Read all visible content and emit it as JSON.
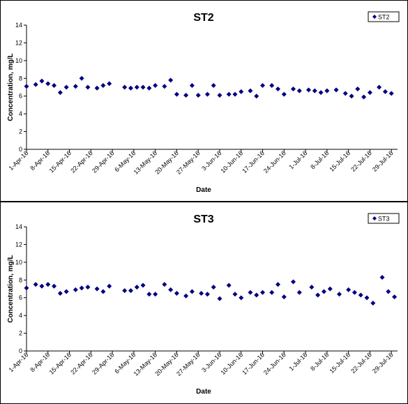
{
  "chart_data": [
    {
      "type": "scatter",
      "title": "ST2",
      "xlabel": "Date",
      "ylabel": "Concentration, mg/L",
      "ylim": [
        0,
        14
      ],
      "yticks": [
        0,
        2,
        4,
        6,
        8,
        10,
        12,
        14
      ],
      "xlim": [
        "2016-04-01",
        "2016-07-31"
      ],
      "xtick_labels": [
        "1-Apr-16",
        "8-Apr-16",
        "15-Apr-16",
        "22-Apr-16",
        "29-Apr-16",
        "6-May-16",
        "13-May-16",
        "20-May-16",
        "27-May-16",
        "3-Jun-16",
        "10-Jun-16",
        "17-Jun-16",
        "24-Jun-16",
        "1-Jul-16",
        "8-Jul-16",
        "15-Jul-16",
        "22-Jul-16",
        "29-Jul-16"
      ],
      "legend": "top-right",
      "grid": false,
      "marker_color": "#000080",
      "series": [
        {
          "name": "ST2",
          "points": [
            [
              "2016-04-01",
              7.1
            ],
            [
              "2016-04-04",
              7.3
            ],
            [
              "2016-04-06",
              7.7
            ],
            [
              "2016-04-08",
              7.4
            ],
            [
              "2016-04-10",
              7.2
            ],
            [
              "2016-04-12",
              6.4
            ],
            [
              "2016-04-14",
              7.0
            ],
            [
              "2016-04-17",
              7.1
            ],
            [
              "2016-04-19",
              8.0
            ],
            [
              "2016-04-21",
              7.0
            ],
            [
              "2016-04-24",
              6.9
            ],
            [
              "2016-04-26",
              7.2
            ],
            [
              "2016-04-28",
              7.4
            ],
            [
              "2016-05-03",
              7.0
            ],
            [
              "2016-05-05",
              6.9
            ],
            [
              "2016-05-07",
              7.0
            ],
            [
              "2016-05-09",
              7.0
            ],
            [
              "2016-05-11",
              6.9
            ],
            [
              "2016-05-13",
              7.2
            ],
            [
              "2016-05-16",
              7.1
            ],
            [
              "2016-05-18",
              7.8
            ],
            [
              "2016-05-20",
              6.2
            ],
            [
              "2016-05-23",
              6.1
            ],
            [
              "2016-05-25",
              7.2
            ],
            [
              "2016-05-27",
              6.1
            ],
            [
              "2016-05-30",
              6.2
            ],
            [
              "2016-06-01",
              7.2
            ],
            [
              "2016-06-03",
              6.1
            ],
            [
              "2016-06-06",
              6.2
            ],
            [
              "2016-06-08",
              6.2
            ],
            [
              "2016-06-10",
              6.5
            ],
            [
              "2016-06-13",
              6.6
            ],
            [
              "2016-06-15",
              6.0
            ],
            [
              "2016-06-17",
              7.2
            ],
            [
              "2016-06-20",
              7.2
            ],
            [
              "2016-06-22",
              6.8
            ],
            [
              "2016-06-24",
              6.2
            ],
            [
              "2016-06-27",
              6.8
            ],
            [
              "2016-06-29",
              6.6
            ],
            [
              "2016-07-02",
              6.7
            ],
            [
              "2016-07-04",
              6.6
            ],
            [
              "2016-07-06",
              6.4
            ],
            [
              "2016-07-08",
              6.6
            ],
            [
              "2016-07-11",
              6.7
            ],
            [
              "2016-07-14",
              6.3
            ],
            [
              "2016-07-16",
              6.0
            ],
            [
              "2016-07-18",
              6.8
            ],
            [
              "2016-07-20",
              5.9
            ],
            [
              "2016-07-22",
              6.4
            ],
            [
              "2016-07-25",
              7.0
            ],
            [
              "2016-07-27",
              6.5
            ],
            [
              "2016-07-29",
              6.3
            ]
          ]
        }
      ]
    },
    {
      "type": "scatter",
      "title": "ST3",
      "xlabel": "Date",
      "ylabel": "Concentration, mg/L",
      "ylim": [
        0,
        14
      ],
      "yticks": [
        0,
        2,
        4,
        6,
        8,
        10,
        12,
        14
      ],
      "xlim": [
        "2016-04-01",
        "2016-07-31"
      ],
      "xtick_labels": [
        "1-Apr-16",
        "8-Apr-16",
        "15-Apr-16",
        "22-Apr-16",
        "29-Apr-16",
        "6-May-16",
        "13-May-16",
        "20-May-16",
        "27-May-16",
        "3-Jun-16",
        "10-Jun-16",
        "17-Jun-16",
        "24-Jun-16",
        "1-Jul-16",
        "8-Jul-16",
        "15-Jul-16",
        "22-Jul-16",
        "29-Jul-16"
      ],
      "legend": "top-right",
      "grid": false,
      "marker_color": "#000080",
      "series": [
        {
          "name": "ST3",
          "points": [
            [
              "2016-04-01",
              7.1
            ],
            [
              "2016-04-04",
              7.5
            ],
            [
              "2016-04-06",
              7.3
            ],
            [
              "2016-04-08",
              7.5
            ],
            [
              "2016-04-10",
              7.3
            ],
            [
              "2016-04-12",
              6.5
            ],
            [
              "2016-04-14",
              6.7
            ],
            [
              "2016-04-17",
              6.9
            ],
            [
              "2016-04-19",
              7.1
            ],
            [
              "2016-04-21",
              7.2
            ],
            [
              "2016-04-24",
              7.0
            ],
            [
              "2016-04-26",
              6.7
            ],
            [
              "2016-04-28",
              7.3
            ],
            [
              "2016-05-03",
              6.8
            ],
            [
              "2016-05-05",
              6.8
            ],
            [
              "2016-05-07",
              7.2
            ],
            [
              "2016-05-09",
              7.4
            ],
            [
              "2016-05-11",
              6.4
            ],
            [
              "2016-05-13",
              6.4
            ],
            [
              "2016-05-16",
              7.5
            ],
            [
              "2016-05-18",
              6.9
            ],
            [
              "2016-05-20",
              6.5
            ],
            [
              "2016-05-23",
              6.2
            ],
            [
              "2016-05-25",
              6.7
            ],
            [
              "2016-05-28",
              6.5
            ],
            [
              "2016-05-30",
              6.4
            ],
            [
              "2016-06-01",
              7.2
            ],
            [
              "2016-06-03",
              5.9
            ],
            [
              "2016-06-06",
              7.4
            ],
            [
              "2016-06-08",
              6.4
            ],
            [
              "2016-06-10",
              6.0
            ],
            [
              "2016-06-13",
              6.6
            ],
            [
              "2016-06-15",
              6.3
            ],
            [
              "2016-06-17",
              6.6
            ],
            [
              "2016-06-20",
              6.6
            ],
            [
              "2016-06-22",
              7.5
            ],
            [
              "2016-06-24",
              6.1
            ],
            [
              "2016-06-27",
              7.8
            ],
            [
              "2016-06-29",
              6.6
            ],
            [
              "2016-07-03",
              7.2
            ],
            [
              "2016-07-05",
              6.3
            ],
            [
              "2016-07-07",
              6.7
            ],
            [
              "2016-07-09",
              7.0
            ],
            [
              "2016-07-12",
              6.4
            ],
            [
              "2016-07-15",
              6.9
            ],
            [
              "2016-07-17",
              6.6
            ],
            [
              "2016-07-19",
              6.3
            ],
            [
              "2016-07-21",
              6.0
            ],
            [
              "2016-07-23",
              5.4
            ],
            [
              "2016-07-26",
              8.3
            ],
            [
              "2016-07-28",
              6.7
            ],
            [
              "2016-07-30",
              6.1
            ]
          ]
        }
      ]
    }
  ]
}
